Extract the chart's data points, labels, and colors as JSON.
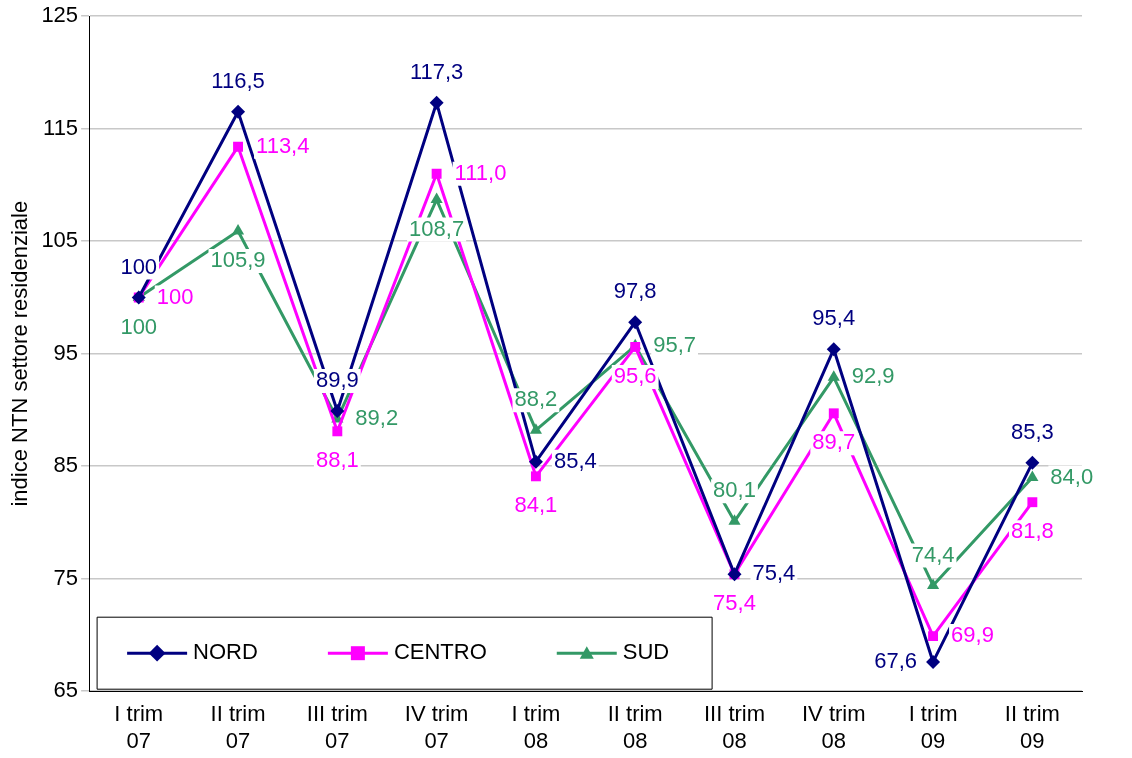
{
  "chart_data": {
    "type": "line",
    "ylabel": "indice NTN settore residenziale",
    "categories": [
      "I trim 07",
      "II trim 07",
      "III trim 07",
      "IV trim 07",
      "I trim 08",
      "II trim 08",
      "III trim 08",
      "IV trim 08",
      "I trim 09",
      "II trim 09"
    ],
    "series": [
      {
        "name": "NORD",
        "color": "#000080",
        "marker": "diamond",
        "values": [
          100,
          116.5,
          89.9,
          117.3,
          85.4,
          97.8,
          75.4,
          95.4,
          67.6,
          85.3
        ],
        "value_labels": [
          "100",
          "116,5",
          "89,9",
          "117,3",
          "85,4",
          "97,8",
          "75,4",
          "95,4",
          "67,6",
          "85,3"
        ]
      },
      {
        "name": "CENTRO",
        "color": "#ff00ff",
        "marker": "square",
        "values": [
          100,
          113.4,
          88.1,
          111.0,
          84.1,
          95.6,
          75.4,
          89.7,
          69.9,
          81.8
        ],
        "value_labels": [
          "100",
          "113,4",
          "88,1",
          "111,0",
          "84,1",
          "95,6",
          "75,4",
          "89,7",
          "69,9",
          "81,8"
        ]
      },
      {
        "name": "SUD",
        "color": "#339966",
        "marker": "triangle",
        "values": [
          100,
          105.9,
          89.2,
          108.7,
          88.2,
          95.7,
          80.1,
          92.9,
          74.4,
          84.0
        ],
        "value_labels": [
          "100",
          "105,9",
          "89,2",
          "108,7",
          "88,2",
          "95,7",
          "80,1",
          "92,9",
          "74,4",
          "84,0"
        ]
      }
    ],
    "ylim": [
      65,
      125
    ],
    "yticks": [
      65,
      75,
      85,
      95,
      105,
      115,
      125
    ],
    "grid": "y",
    "legend": "bottom left"
  }
}
